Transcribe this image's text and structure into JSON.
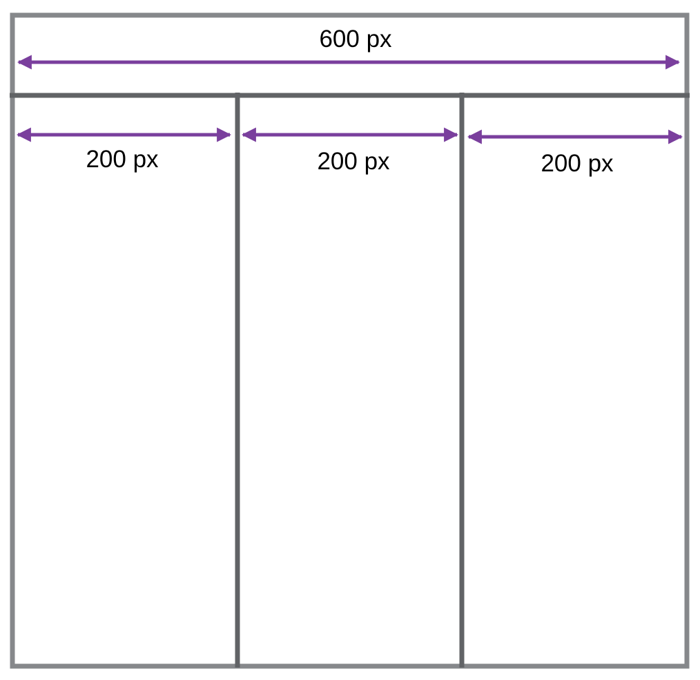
{
  "total_width": {
    "label": "600 px"
  },
  "columns": [
    {
      "label": "200 px"
    },
    {
      "label": "200 px"
    },
    {
      "label": "200 px"
    }
  ],
  "colors": {
    "outer_border": "#86888b",
    "divider": "#616366",
    "arrow": "#7a3f9d",
    "text": "#000000",
    "background": "#ffffff"
  }
}
